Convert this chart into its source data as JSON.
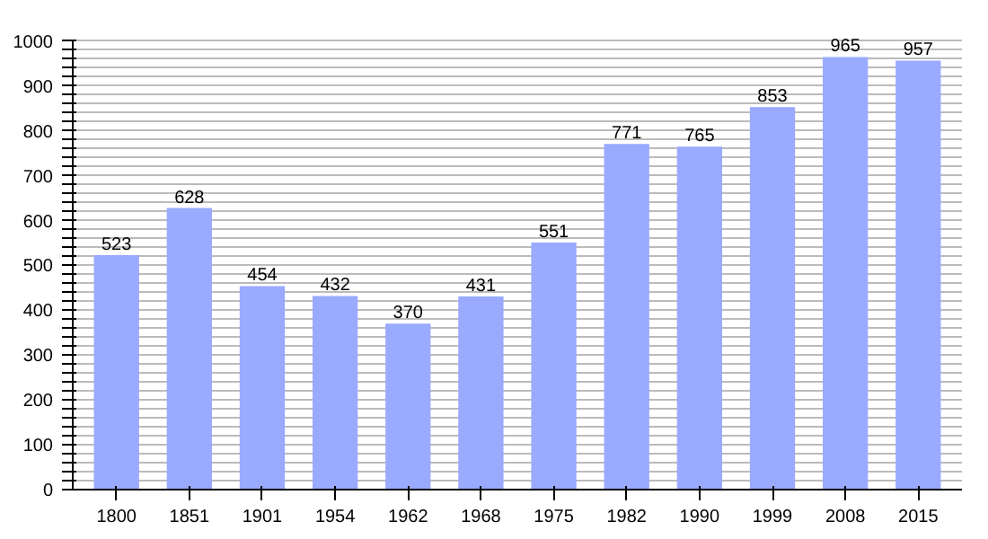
{
  "chart_data": {
    "type": "bar",
    "categories": [
      "1800",
      "1851",
      "1901",
      "1954",
      "1962",
      "1968",
      "1975",
      "1982",
      "1990",
      "1999",
      "2008",
      "2015"
    ],
    "values": [
      523,
      628,
      454,
      432,
      370,
      431,
      551,
      771,
      765,
      853,
      965,
      957
    ],
    "color": "#99aaff",
    "data_labels": true,
    "grid": "y",
    "ylim": [
      0,
      1000
    ],
    "yticks": [
      0,
      {
        "value": 20,
        "label": null
      },
      {
        "value": 40,
        "label": null
      },
      {
        "value": 60,
        "label": null
      },
      {
        "value": 80,
        "label": null
      },
      100,
      {
        "value": 120,
        "label": null
      },
      {
        "value": 140,
        "label": null
      },
      {
        "value": 160,
        "label": null
      },
      {
        "value": 180,
        "label": null
      },
      200,
      {
        "value": 220,
        "label": null
      },
      {
        "value": 240,
        "label": null
      },
      {
        "value": 260,
        "label": null
      },
      {
        "value": 280,
        "label": null
      },
      300,
      {
        "value": 320,
        "label": null
      },
      {
        "value": 340,
        "label": null
      },
      {
        "value": 360,
        "label": null
      },
      {
        "value": 380,
        "label": null
      },
      400,
      {
        "value": 420,
        "label": null
      },
      {
        "value": 440,
        "label": null
      },
      {
        "value": 460,
        "label": null
      },
      {
        "value": 480,
        "label": null
      },
      500,
      {
        "value": 520,
        "label": null
      },
      {
        "value": 540,
        "label": null
      },
      {
        "value": 560,
        "label": null
      },
      {
        "value": 580,
        "label": null
      },
      600,
      {
        "value": 620,
        "label": null
      },
      {
        "value": 640,
        "label": null
      },
      {
        "value": 660,
        "label": null
      },
      {
        "value": 680,
        "label": null
      },
      700,
      {
        "value": 720,
        "label": null
      },
      {
        "value": 740,
        "label": null
      },
      {
        "value": 760,
        "label": null
      },
      {
        "value": 780,
        "label": null
      },
      800,
      {
        "value": 820,
        "label": null
      },
      {
        "value": 840,
        "label": null
      },
      {
        "value": 860,
        "label": null
      },
      {
        "value": 880,
        "label": null
      },
      900,
      {
        "value": 920,
        "label": null
      },
      {
        "value": 940,
        "label": null
      },
      {
        "value": 960,
        "label": null
      },
      {
        "value": 980,
        "label": null
      },
      1000
    ]
  }
}
